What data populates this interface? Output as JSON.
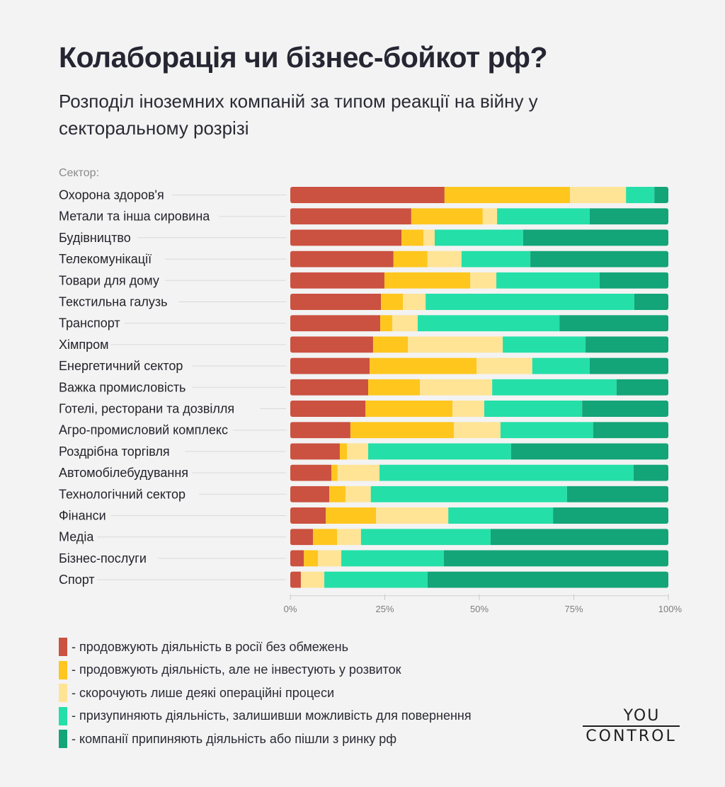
{
  "header": {
    "title": "Колаборація чи бізнес-бойкот рф?",
    "subtitle": "Розподіл іноземних компаній за типом реакції на війну у секторальному розрізі"
  },
  "sector_heading": "Сектор:",
  "logo": {
    "top": "YOU",
    "bottom": "CONTROL"
  },
  "chart_data": {
    "type": "bar",
    "orientation": "horizontal",
    "stacked": true,
    "normalized": true,
    "title": "Колаборація чи бізнес-бойкот рф?",
    "subtitle": "Розподіл іноземних компаній за типом реакції на війну у секторальному розрізі",
    "ylabel": "Сектор:",
    "xlabel": "",
    "xlim": [
      0,
      100
    ],
    "x_ticks": [
      "0%",
      "25%",
      "50%",
      "75%",
      "100%"
    ],
    "x_tick_values": [
      0,
      25,
      50,
      75,
      100
    ],
    "grid": false,
    "legend_position": "bottom-left",
    "categories": [
      "Охорона здоров'я",
      "Метали та інша сировина",
      "Будівництво",
      "Телекомунікації",
      "Товари для дому",
      "Текстильна галузь",
      "Транспорт",
      "Хімпром",
      "Енергетичний сектор",
      "Важка промисловість",
      "Готелі, ресторани та дозвілля",
      "Агро-промисловий комплекс",
      "Роздрібна торгівля",
      "Автомобілебудування",
      "Технологічний сектор",
      "Фінанси",
      "Медіа",
      "Бізнес-послуги",
      "Спорт"
    ],
    "series": [
      {
        "name": "- продовжують діяльність в росії без обмежень",
        "color": "#cb5140",
        "values": [
          40.8,
          32.0,
          29.4,
          27.3,
          24.9,
          24.0,
          23.8,
          21.9,
          21.0,
          20.6,
          19.9,
          15.9,
          13.1,
          10.9,
          10.3,
          9.4,
          6.0,
          3.6,
          2.8
        ]
      },
      {
        "name": "- продовжують діяльність, але не інвестують у розвиток",
        "color": "#ffc61e",
        "values": [
          33.2,
          18.9,
          5.8,
          9.0,
          22.7,
          5.8,
          3.2,
          9.2,
          28.3,
          13.7,
          23.0,
          27.4,
          1.9,
          1.6,
          4.3,
          13.3,
          6.4,
          3.7,
          0
        ]
      },
      {
        "name": "- скорочують лише деякі операційні процеси",
        "color": "#ffe496",
        "values": [
          14.8,
          3.8,
          3.0,
          9.0,
          6.9,
          6.0,
          6.7,
          25.1,
          14.7,
          19.1,
          8.4,
          12.3,
          5.6,
          11.1,
          6.7,
          19.1,
          6.3,
          6.2,
          6.2
        ]
      },
      {
        "name": "- призупиняють діяльність, залишивши можливість для повернення",
        "color": "#24dfa8",
        "values": [
          7.5,
          24.5,
          23.4,
          18.2,
          27.3,
          55.2,
          37.5,
          21.9,
          15.2,
          32.9,
          25.9,
          24.5,
          37.8,
          67.2,
          51.9,
          27.7,
          34.3,
          27.1,
          27.3
        ]
      },
      {
        "name": "- компанії припиняють діяльність або пішли з ринку рф",
        "color": "#13a478",
        "values": [
          3.7,
          20.8,
          38.4,
          36.5,
          18.2,
          9.0,
          28.8,
          21.9,
          20.8,
          13.7,
          22.8,
          19.9,
          41.6,
          9.2,
          26.8,
          30.5,
          47.0,
          59.4,
          63.7
        ]
      }
    ]
  }
}
